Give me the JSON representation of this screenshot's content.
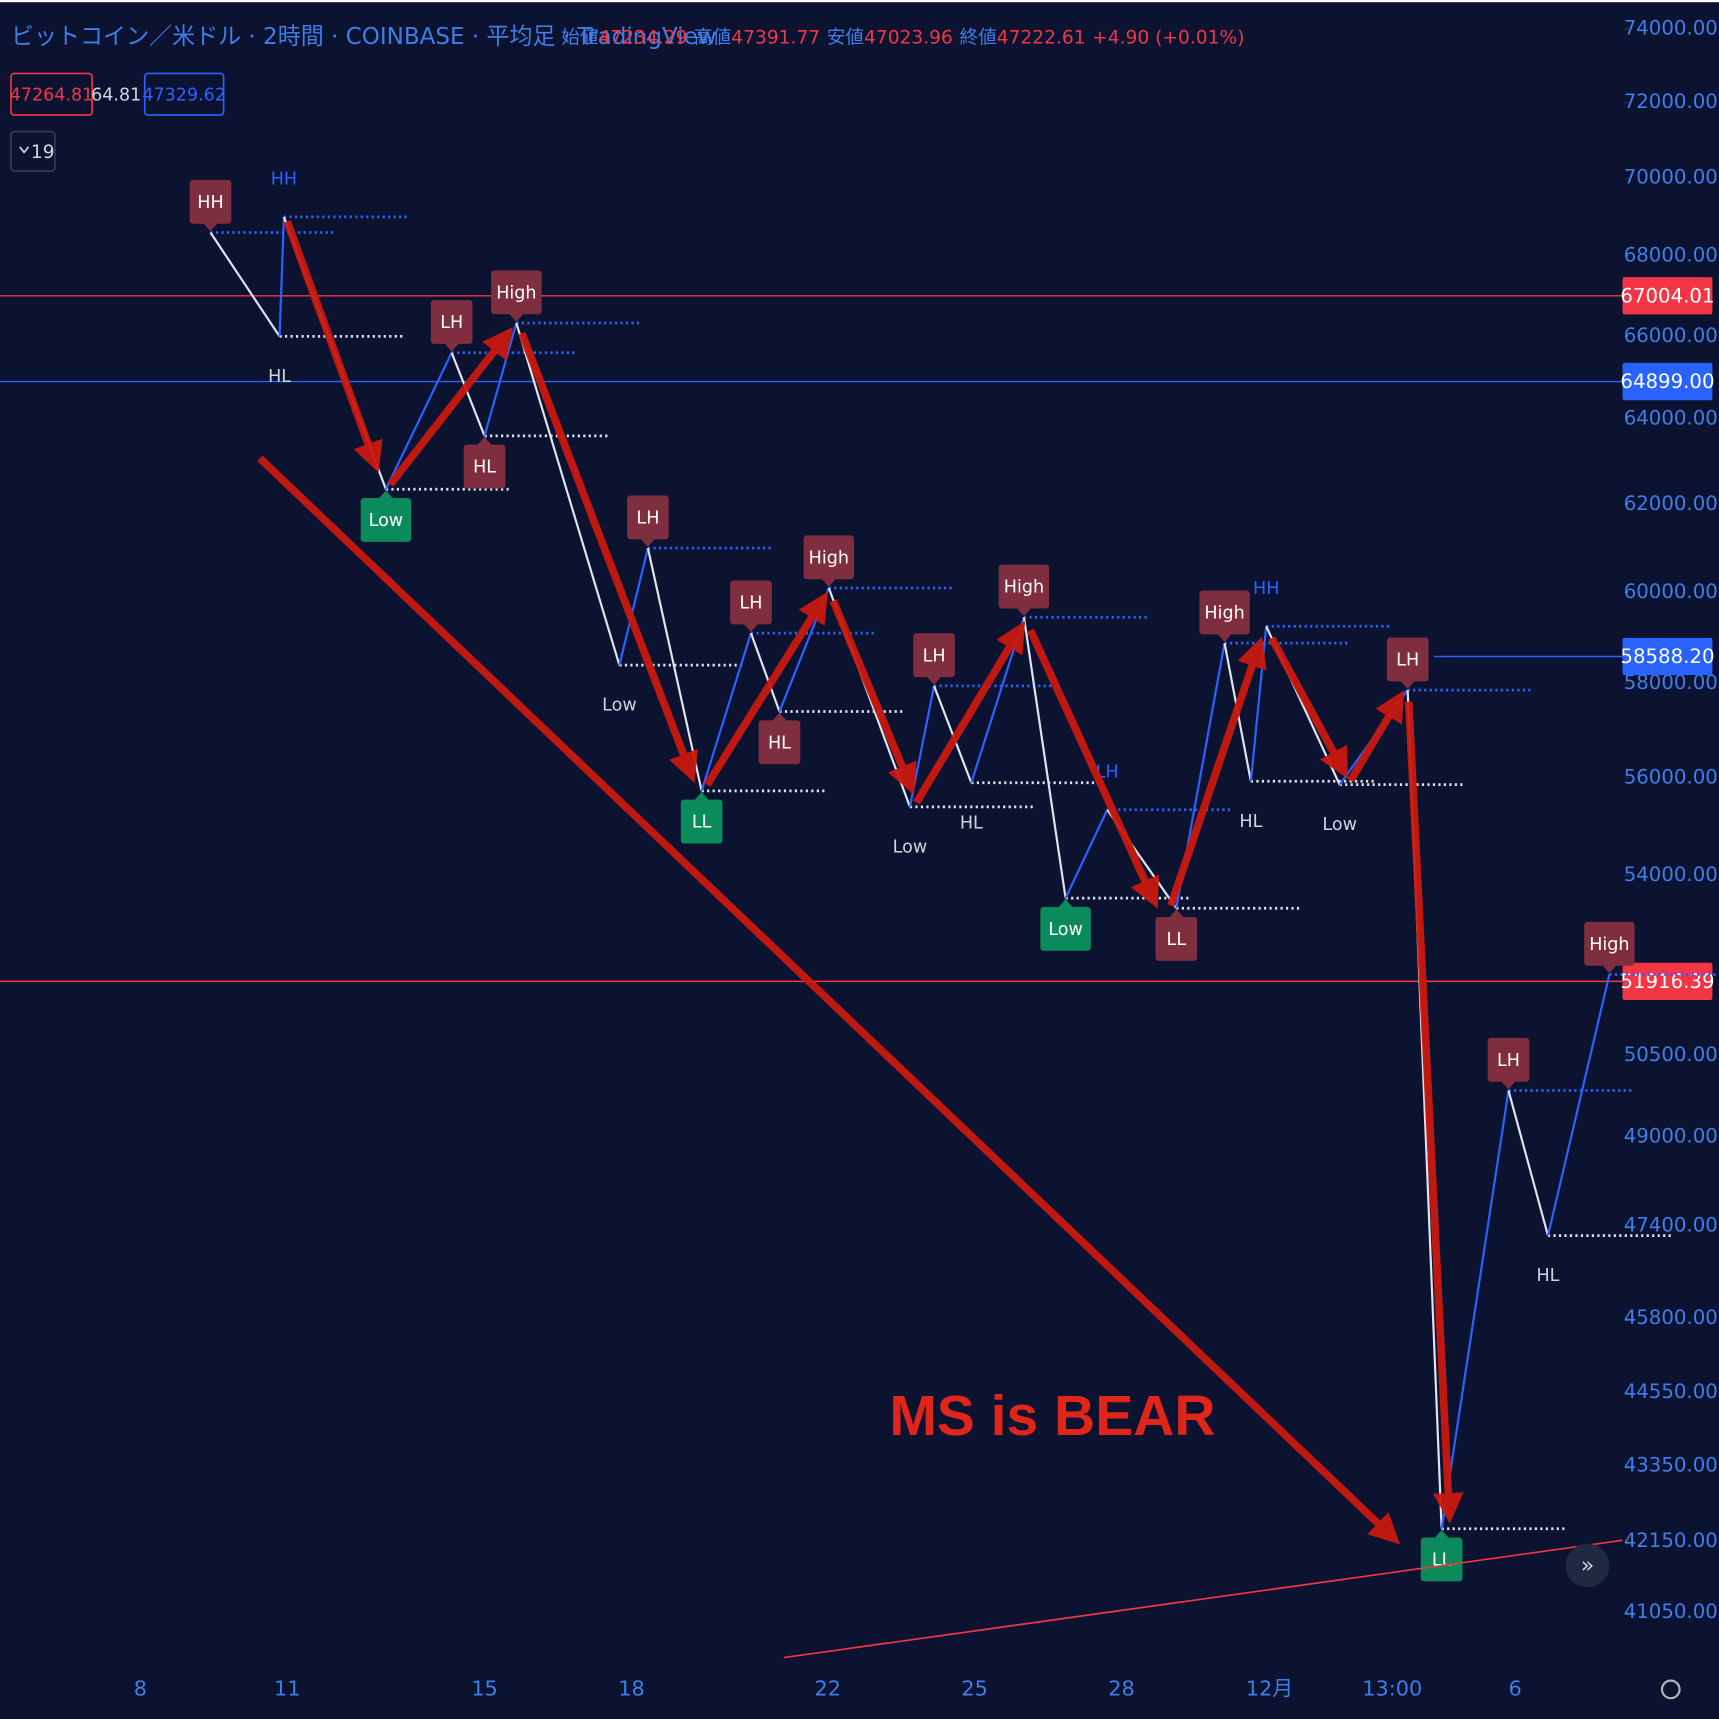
{
  "header": {
    "title": "ビットコイン／米ドル · 2時間 · COINBASE · 平均足 · TradingView",
    "ohlc": [
      {
        "label": "始値",
        "value": 47234.29
      },
      {
        "label": "高値",
        "value": 47391.77
      },
      {
        "label": "安値",
        "value": 47023.96
      },
      {
        "label": "終値",
        "value": 47222.61
      }
    ],
    "change": "+4.90 (+0.01%)"
  },
  "indicator": {
    "values": [
      47264.81,
      64.81,
      47329.62
    ],
    "count": 19
  },
  "chart_data": {
    "type": "zigzag",
    "log_scale": true,
    "ylim": [
      40400,
      74800
    ],
    "yticks": [
      {
        "value": 74000,
        "label": "74000.00"
      },
      {
        "value": 72000,
        "label": "72000.00"
      },
      {
        "value": 70000,
        "label": "70000.00"
      },
      {
        "value": 68000,
        "label": "68000.00"
      },
      {
        "value": 66000,
        "label": "66000.00"
      },
      {
        "value": 64000,
        "label": "64000.00"
      },
      {
        "value": 62000,
        "label": "62000.00"
      },
      {
        "value": 60000,
        "label": "60000.00"
      },
      {
        "value": 58000,
        "label": "58000.00"
      },
      {
        "value": 56000,
        "label": "56000.00"
      },
      {
        "value": 54000,
        "label": "54000.00"
      },
      {
        "value": 50500,
        "label": "50500.00"
      },
      {
        "value": 49000,
        "label": "49000.00"
      },
      {
        "value": 47400,
        "label": "47400.00"
      },
      {
        "value": 45800,
        "label": "45800.00"
      },
      {
        "value": 44550,
        "label": "44550.00"
      },
      {
        "value": 43350,
        "label": "43350.00"
      },
      {
        "value": 42150,
        "label": "42150.00"
      },
      {
        "value": 41050,
        "label": "41050.00"
      }
    ],
    "categories": [
      "8",
      "11",
      "15",
      "18",
      "22",
      "25",
      "28",
      "12月",
      "13:00",
      "6"
    ],
    "up_color": "#2962ff",
    "down_color": "#e0e3eb",
    "swings": [
      {
        "label": "HH",
        "value": 68600,
        "color": "#7f2e3f",
        "box": true,
        "side": "above"
      },
      {
        "label": "HL",
        "value": 66000,
        "color": "#d1d4dc",
        "box": false,
        "side": "below"
      },
      {
        "label": "HH",
        "value": 69000,
        "color": "#2962ff",
        "box": false,
        "side": "above"
      },
      {
        "label": "Low",
        "value": 62350,
        "color": "#0b8a5b",
        "box": true,
        "side": "below"
      },
      {
        "label": "LH",
        "value": 65600,
        "color": "#7f2e3f",
        "box": true,
        "side": "above"
      },
      {
        "label": "HL",
        "value": 63600,
        "color": "#7f2e3f",
        "box": true,
        "side": "below"
      },
      {
        "label": "High",
        "value": 66330,
        "color": "#7f2e3f",
        "box": true,
        "side": "above"
      },
      {
        "label": "Low",
        "value": 58400,
        "color": "#d1d4dc",
        "box": false,
        "side": "below"
      },
      {
        "label": "LH",
        "value": 61000,
        "color": "#7f2e3f",
        "box": true,
        "side": "above"
      },
      {
        "label": "LL",
        "value": 55730,
        "color": "#0b8a5b",
        "box": true,
        "side": "below"
      },
      {
        "label": "LH",
        "value": 59100,
        "color": "#7f2e3f",
        "box": true,
        "side": "above"
      },
      {
        "label": "HL",
        "value": 57400,
        "color": "#7f2e3f",
        "box": true,
        "side": "below"
      },
      {
        "label": "High",
        "value": 60100,
        "color": "#7f2e3f",
        "box": true,
        "side": "above"
      },
      {
        "label": "Low",
        "value": 55400,
        "color": "#d1d4dc",
        "box": false,
        "side": "below"
      },
      {
        "label": "LH",
        "value": 57950,
        "color": "#7f2e3f",
        "box": true,
        "side": "above"
      },
      {
        "label": "HL",
        "value": 55900,
        "color": "#d1d4dc",
        "box": false,
        "side": "below"
      },
      {
        "label": "High",
        "value": 59450,
        "color": "#7f2e3f",
        "box": true,
        "side": "above"
      },
      {
        "label": "Low",
        "value": 53550,
        "color": "#0b8a5b",
        "box": true,
        "side": "below"
      },
      {
        "label": "LH",
        "value": 55340,
        "color": "#2962ff",
        "box": false,
        "side": "above"
      },
      {
        "label": "LL",
        "value": 53350,
        "color": "#7f2e3f",
        "box": true,
        "side": "below"
      },
      {
        "label": "High",
        "value": 58880,
        "color": "#7f2e3f",
        "box": true,
        "side": "above"
      },
      {
        "label": "HL",
        "value": 55930,
        "color": "#d1d4dc",
        "box": false,
        "side": "below"
      },
      {
        "label": "HH",
        "value": 59250,
        "color": "#2962ff",
        "box": false,
        "side": "above"
      },
      {
        "label": "Low",
        "value": 55860,
        "color": "#d1d4dc",
        "box": false,
        "side": "below"
      },
      {
        "label": "LH",
        "value": 57860,
        "color": "#7f2e3f",
        "box": true,
        "side": "above"
      },
      {
        "label": "LL",
        "value": 42350,
        "color": "#0b8a5b",
        "box": true,
        "side": "below"
      },
      {
        "label": "LH",
        "value": 49850,
        "color": "#7f2e3f",
        "box": true,
        "side": "above"
      },
      {
        "label": "HL",
        "value": 47230,
        "color": "#d1d4dc",
        "box": false,
        "side": "below"
      },
      {
        "label": "High",
        "value": 52050,
        "color": "#7f2e3f",
        "box": true,
        "side": "above"
      }
    ],
    "price_lines": [
      {
        "value": 67004.01,
        "color": "#f23645"
      },
      {
        "value": {
          "value": 64899,
          "label": "64899.00"
        },
        "color": "#2962ff"
      },
      {
        "value": {
          "value": 58588.2,
          "label": "58588.20"
        },
        "color": "#2962ff"
      },
      {
        "value": 51916.39,
        "color": "#f23645"
      }
    ],
    "annotation": "MS is BEAR"
  }
}
